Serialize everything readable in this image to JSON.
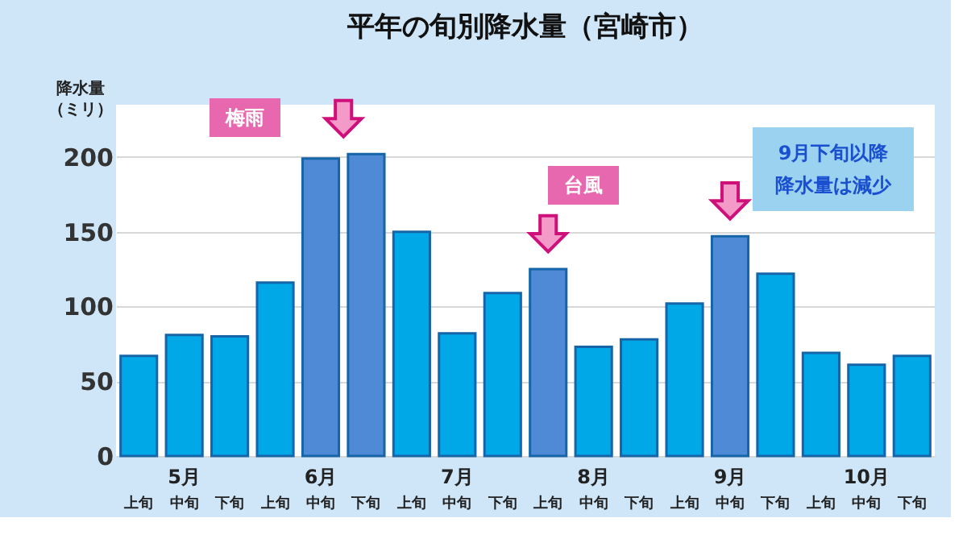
{
  "chart_data": {
    "type": "bar",
    "title": "平年の旬別降水量（宮崎市）",
    "ylabel": "降水量（ミリ）",
    "categories": [
      "上旬",
      "中旬",
      "下旬",
      "上旬",
      "中旬",
      "下旬",
      "上旬",
      "中旬",
      "下旬",
      "上旬",
      "中旬",
      "下旬",
      "上旬",
      "中旬",
      "下旬",
      "上旬",
      "中旬",
      "下旬"
    ],
    "values": [
      67,
      81,
      80,
      116,
      199,
      202,
      150,
      82,
      109,
      125,
      73,
      78,
      102,
      147,
      122,
      69,
      61,
      67
    ],
    "colors": [
      "#00a8e8",
      "#00a8e8",
      "#00a8e8",
      "#00a8e8",
      "#4f8ad6",
      "#4f8ad6",
      "#00a8e8",
      "#00a8e8",
      "#00a8e8",
      "#4f8ad6",
      "#00a8e8",
      "#00a8e8",
      "#00a8e8",
      "#4f8ad6",
      "#00a8e8",
      "#00a8e8",
      "#00a8e8",
      "#00a8e8"
    ],
    "annotations": [
      "梅雨",
      "台風",
      "9月下旬以降降水量は減少",
      "5月",
      "6月",
      "7月",
      "8月",
      "9月",
      "10月"
    ],
    "ylim": [
      0,
      235
    ],
    "yticks": [
      0,
      50,
      100,
      150,
      200
    ],
    "grid": "y"
  }
}
